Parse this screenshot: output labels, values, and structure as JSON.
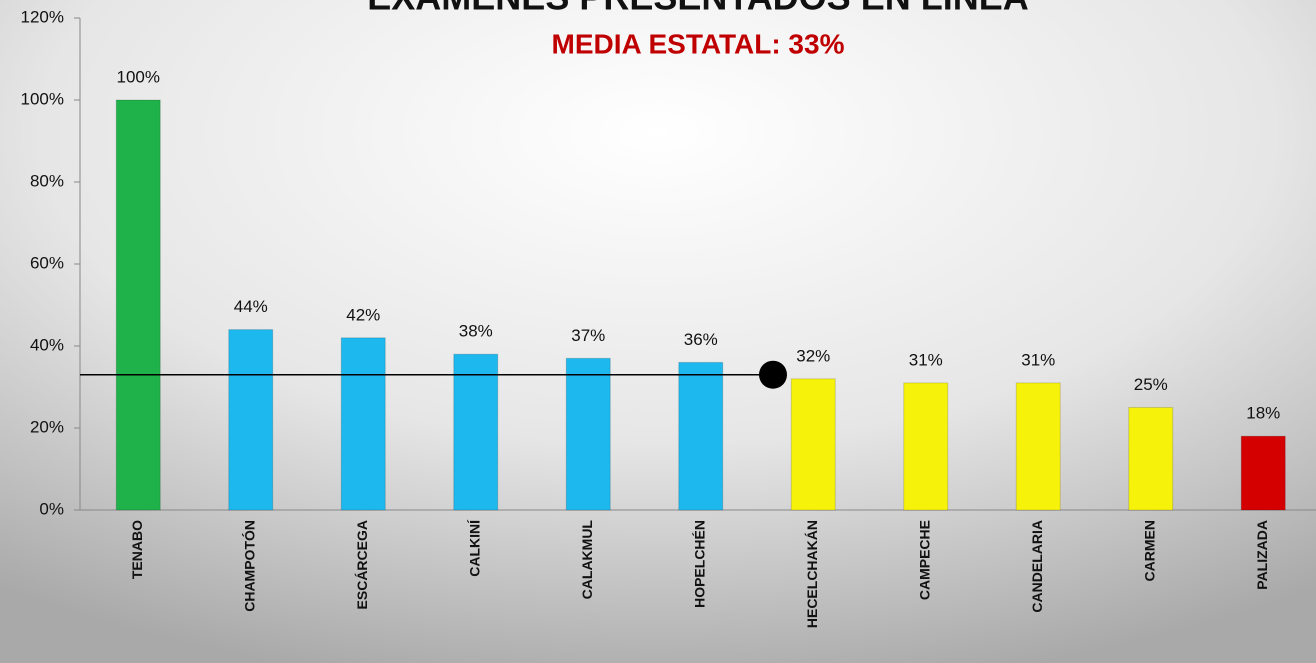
{
  "chart_data": {
    "type": "bar",
    "title": "EXAMENES PRESENTADOS EN LINEA",
    "subtitle": "MEDIA ESTATAL: 33%",
    "categories": [
      "TENABO",
      "CHAMPOTÓN",
      "ESCÁRCEGA",
      "CALKINÍ",
      "CALAKMUL",
      "HOPELCHÉN",
      "HECELCHAKÁN",
      "CAMPECHE",
      "CANDELARIA",
      "CARMEN",
      "PALIZADA"
    ],
    "values": [
      100,
      44,
      42,
      38,
      37,
      36,
      32,
      31,
      31,
      25,
      18
    ],
    "value_labels": [
      "100%",
      "44%",
      "42%",
      "38%",
      "37%",
      "36%",
      "32%",
      "31%",
      "31%",
      "25%",
      "18%"
    ],
    "colors": [
      "#1fb24a",
      "#1cb8ee",
      "#1cb8ee",
      "#1cb8ee",
      "#1cb8ee",
      "#1cb8ee",
      "#f7f20a",
      "#f7f20a",
      "#f7f20a",
      "#f7f20a",
      "#d40000"
    ],
    "reference_line": 33,
    "ylim": [
      0,
      120
    ],
    "yticks": [
      {
        "value": 0,
        "label": "0%"
      },
      {
        "value": 20,
        "label": "20%"
      },
      {
        "value": 40,
        "label": "40%"
      },
      {
        "value": 60,
        "label": "60%"
      },
      {
        "value": 80,
        "label": "80%"
      },
      {
        "value": 100,
        "label": "100%"
      },
      {
        "value": 120,
        "label": "120%"
      }
    ]
  }
}
